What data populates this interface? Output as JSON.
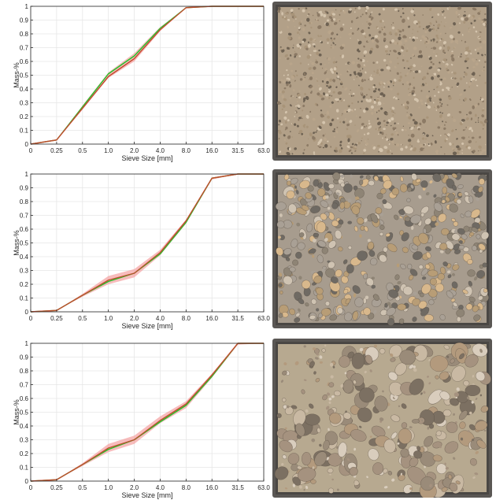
{
  "chart_data": [
    {
      "type": "line",
      "title": "",
      "xlabel": "Sieve Size [mm]",
      "ylabel": "Mass-%",
      "categories": [
        "0",
        "0.25",
        "0.5",
        "1.0",
        "2.0",
        "4.0",
        "8.0",
        "16.0",
        "31.5",
        "63.0"
      ],
      "ylim": [
        0,
        1
      ],
      "yticks": [
        "0",
        "0.1",
        "0.2",
        "0.3",
        "0.4",
        "0.5",
        "0.6",
        "0.7",
        "0.8",
        "0.9",
        "1"
      ],
      "grid": true,
      "legend": "none",
      "series": [
        {
          "color": "#22c22a",
          "values": [
            0,
            0.03,
            0.27,
            0.51,
            0.64,
            0.84,
            0.99,
            1.0,
            1.0,
            1.0
          ]
        },
        {
          "color": "#e23a3a",
          "values": [
            0,
            0.03,
            0.26,
            0.49,
            0.62,
            0.83,
            0.99,
            1.0,
            1.0,
            1.0
          ]
        }
      ],
      "band": {
        "color": "#f4a0a0",
        "lower": [
          0,
          0.03,
          0.25,
          0.48,
          0.6,
          0.82,
          0.99,
          1.0,
          1.0,
          1.0
        ],
        "upper": [
          0,
          0.03,
          0.28,
          0.52,
          0.66,
          0.85,
          0.99,
          1.0,
          1.0,
          1.0
        ]
      },
      "image": {
        "icon": "sand-fine-gravel-photo",
        "colors": [
          "#b9a58b",
          "#8c7a65",
          "#d4c4ad",
          "#6e6253",
          "#a89479"
        ],
        "density": "fine"
      }
    },
    {
      "type": "line",
      "title": "",
      "xlabel": "Sieve Size [mm]",
      "ylabel": "Mass-%",
      "categories": [
        "0",
        "0.25",
        "0.5",
        "1.0",
        "2.0",
        "4.0",
        "8.0",
        "16.0",
        "31.5",
        "63.0"
      ],
      "ylim": [
        0,
        1
      ],
      "yticks": [
        "0",
        "0.1",
        "0.2",
        "0.3",
        "0.4",
        "0.5",
        "0.6",
        "0.7",
        "0.8",
        "0.9",
        "1"
      ],
      "grid": true,
      "legend": "none",
      "series": [
        {
          "color": "#22c22a",
          "values": [
            0,
            0.01,
            0.12,
            0.22,
            0.28,
            0.42,
            0.65,
            0.97,
            1.0,
            1.0
          ]
        },
        {
          "color": "#e23a3a",
          "values": [
            0,
            0.01,
            0.12,
            0.23,
            0.28,
            0.43,
            0.66,
            0.97,
            1.0,
            1.0
          ]
        }
      ],
      "band": {
        "color": "#f4a0a0",
        "lower": [
          0,
          0.01,
          0.11,
          0.2,
          0.25,
          0.41,
          0.64,
          0.96,
          1.0,
          1.0
        ],
        "upper": [
          0,
          0.01,
          0.13,
          0.26,
          0.31,
          0.45,
          0.67,
          0.97,
          1.0,
          1.0
        ]
      },
      "image": {
        "icon": "medium-gravel-photo",
        "colors": [
          "#cfc3b2",
          "#8e8475",
          "#b89d76",
          "#6f6a63",
          "#a9a095",
          "#d8b88c"
        ],
        "density": "medium"
      }
    },
    {
      "type": "line",
      "title": "",
      "xlabel": "Sieve Size [mm]",
      "ylabel": "Mass-%",
      "categories": [
        "0",
        "0.25",
        "0.5",
        "1.0",
        "2.0",
        "4.0",
        "8.0",
        "16.0",
        "31.5",
        "63.0"
      ],
      "ylim": [
        0,
        1
      ],
      "yticks": [
        "0",
        "0.1",
        "0.2",
        "0.3",
        "0.4",
        "0.5",
        "0.6",
        "0.7",
        "0.8",
        "0.9",
        "1"
      ],
      "grid": true,
      "legend": "none",
      "series": [
        {
          "color": "#22c22a",
          "values": [
            0,
            0.01,
            0.12,
            0.23,
            0.3,
            0.43,
            0.55,
            0.76,
            1.0,
            1.0
          ]
        },
        {
          "color": "#e23a3a",
          "values": [
            0,
            0.01,
            0.12,
            0.24,
            0.3,
            0.44,
            0.56,
            0.77,
            1.0,
            1.0
          ]
        }
      ],
      "band": {
        "color": "#f4a0a0",
        "lower": [
          0,
          0.01,
          0.11,
          0.21,
          0.27,
          0.42,
          0.53,
          0.75,
          0.99,
          1.0
        ],
        "upper": [
          0,
          0.01,
          0.13,
          0.27,
          0.33,
          0.47,
          0.58,
          0.78,
          1.0,
          1.0
        ]
      },
      "image": {
        "icon": "coarse-gravel-photo",
        "colors": [
          "#c9b9a3",
          "#9a8b79",
          "#b39a7d",
          "#d9cdbd",
          "#7c7062",
          "#a5927f"
        ],
        "density": "coarse"
      }
    }
  ]
}
